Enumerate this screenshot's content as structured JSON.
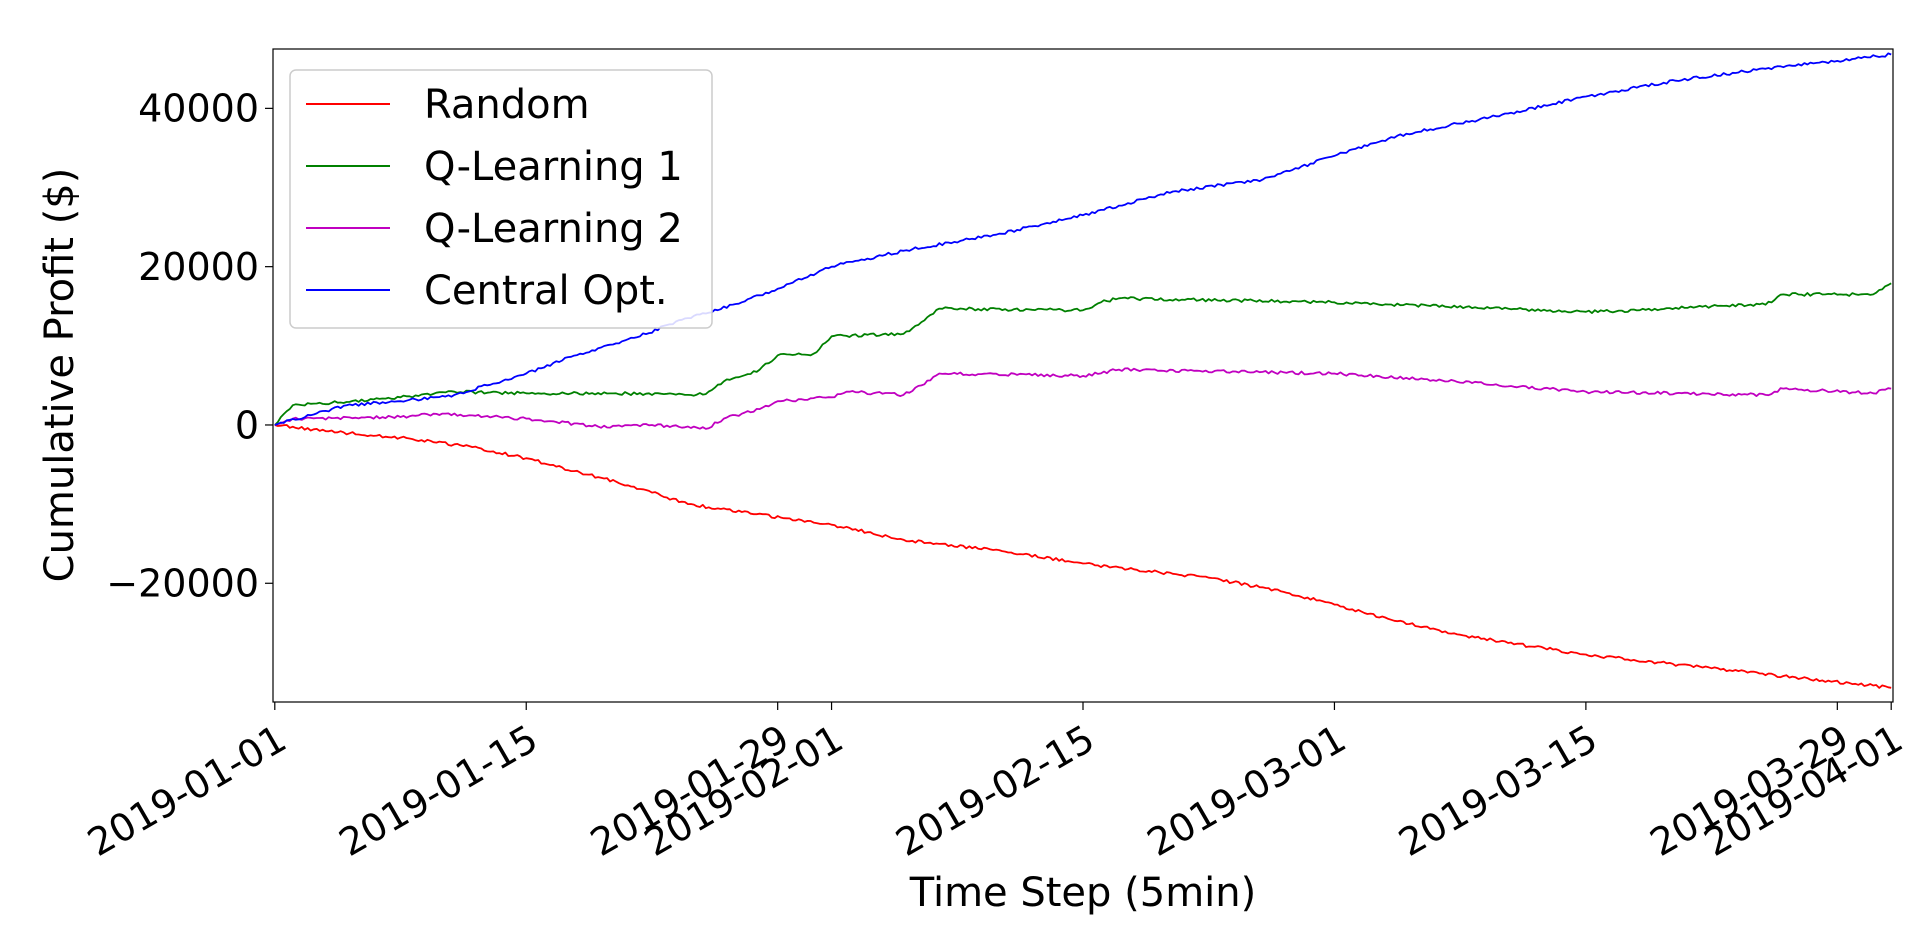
{
  "chart_data": {
    "type": "line",
    "title": "",
    "xlabel": "Time Step (5min)",
    "ylabel": "Cumulative Profit ($)",
    "x_type": "date",
    "xlim": [
      "2019-01-01",
      "2019-04-01"
    ],
    "ylim": [
      -35000,
      47500
    ],
    "x_ticks": [
      "2019-01-01",
      "2019-01-15",
      "2019-01-29",
      "2019-02-01",
      "2019-02-15",
      "2019-03-01",
      "2019-03-15",
      "2019-03-29",
      "2019-04-01"
    ],
    "y_ticks": [
      -20000,
      0,
      20000,
      40000
    ],
    "y_tick_labels": [
      "−20000",
      "0",
      "20000",
      "40000"
    ],
    "grid": false,
    "legend_position": "upper-left",
    "series": [
      {
        "name": "Random",
        "color": "#ff0000",
        "points": [
          [
            "2019-01-01",
            0
          ],
          [
            "2019-01-04",
            -800
          ],
          [
            "2019-01-08",
            -1600
          ],
          [
            "2019-01-12",
            -2800
          ],
          [
            "2019-01-15",
            -4200
          ],
          [
            "2019-01-18",
            -6000
          ],
          [
            "2019-01-21",
            -7800
          ],
          [
            "2019-01-24",
            -10000
          ],
          [
            "2019-01-27",
            -11000
          ],
          [
            "2019-02-01",
            -12600
          ],
          [
            "2019-02-05",
            -14500
          ],
          [
            "2019-02-10",
            -15800
          ],
          [
            "2019-02-15",
            -17500
          ],
          [
            "2019-02-18",
            -18300
          ],
          [
            "2019-02-22",
            -19300
          ],
          [
            "2019-02-26",
            -21000
          ],
          [
            "2019-03-01",
            -22700
          ],
          [
            "2019-03-04",
            -24500
          ],
          [
            "2019-03-08",
            -26500
          ],
          [
            "2019-03-12",
            -28000
          ],
          [
            "2019-03-15",
            -29000
          ],
          [
            "2019-03-19",
            -30000
          ],
          [
            "2019-03-23",
            -31000
          ],
          [
            "2019-03-27",
            -32000
          ],
          [
            "2019-03-30",
            -32700
          ],
          [
            "2019-04-01",
            -33200
          ]
        ]
      },
      {
        "name": "Q-Learning 1",
        "color": "#008000",
        "points": [
          [
            "2019-01-01",
            0
          ],
          [
            "2019-01-02",
            2500
          ],
          [
            "2019-01-05",
            2900
          ],
          [
            "2019-01-08",
            3500
          ],
          [
            "2019-01-11",
            4200
          ],
          [
            "2019-01-15",
            4000
          ],
          [
            "2019-01-20",
            4000
          ],
          [
            "2019-01-24",
            3800
          ],
          [
            "2019-01-25",
            3900
          ],
          [
            "2019-01-26",
            5500
          ],
          [
            "2019-01-28",
            7000
          ],
          [
            "2019-01-29",
            8800
          ],
          [
            "2019-01-31",
            9000
          ],
          [
            "2019-02-01",
            11200
          ],
          [
            "2019-02-05",
            11500
          ],
          [
            "2019-02-06",
            13000
          ],
          [
            "2019-02-07",
            14700
          ],
          [
            "2019-02-15",
            14500
          ],
          [
            "2019-02-16",
            15500
          ],
          [
            "2019-02-17",
            16000
          ],
          [
            "2019-03-01",
            15500
          ],
          [
            "2019-03-15",
            14300
          ],
          [
            "2019-03-18",
            14500
          ],
          [
            "2019-03-22",
            15000
          ],
          [
            "2019-03-25",
            15200
          ],
          [
            "2019-03-26",
            16500
          ],
          [
            "2019-03-31",
            16500
          ],
          [
            "2019-04-01",
            17900
          ]
        ]
      },
      {
        "name": "Q-Learning 2",
        "color": "#c000c0",
        "points": [
          [
            "2019-01-01",
            0
          ],
          [
            "2019-01-02",
            800
          ],
          [
            "2019-01-08",
            1000
          ],
          [
            "2019-01-10",
            1400
          ],
          [
            "2019-01-15",
            800
          ],
          [
            "2019-01-19",
            -200
          ],
          [
            "2019-01-22",
            0
          ],
          [
            "2019-01-25",
            -500
          ],
          [
            "2019-01-26",
            800
          ],
          [
            "2019-01-28",
            2000
          ],
          [
            "2019-01-29",
            3000
          ],
          [
            "2019-02-01",
            3500
          ],
          [
            "2019-02-02",
            4200
          ],
          [
            "2019-02-05",
            3800
          ],
          [
            "2019-02-06",
            5000
          ],
          [
            "2019-02-07",
            6500
          ],
          [
            "2019-02-15",
            6200
          ],
          [
            "2019-02-17",
            7000
          ],
          [
            "2019-03-01",
            6500
          ],
          [
            "2019-03-06",
            5800
          ],
          [
            "2019-03-15",
            4200
          ],
          [
            "2019-03-20",
            4000
          ],
          [
            "2019-03-25",
            3800
          ],
          [
            "2019-03-26",
            4600
          ],
          [
            "2019-03-31",
            4000
          ],
          [
            "2019-04-01",
            4600
          ]
        ]
      },
      {
        "name": "Central Opt.",
        "color": "#0000ff",
        "points": [
          [
            "2019-01-01",
            0
          ],
          [
            "2019-01-05",
            2500
          ],
          [
            "2019-01-08",
            3000
          ],
          [
            "2019-01-11",
            3800
          ],
          [
            "2019-01-15",
            6500
          ],
          [
            "2019-01-18",
            9000
          ],
          [
            "2019-01-21",
            11000
          ],
          [
            "2019-01-24",
            13500
          ],
          [
            "2019-01-27",
            15500
          ],
          [
            "2019-01-29",
            17200
          ],
          [
            "2019-02-01",
            20000
          ],
          [
            "2019-02-05",
            22000
          ],
          [
            "2019-02-10",
            24000
          ],
          [
            "2019-02-15",
            26500
          ],
          [
            "2019-02-20",
            29500
          ],
          [
            "2019-02-25",
            31000
          ],
          [
            "2019-03-01",
            34000
          ],
          [
            "2019-03-05",
            36800
          ],
          [
            "2019-03-10",
            39000
          ],
          [
            "2019-03-15",
            41500
          ],
          [
            "2019-03-20",
            43500
          ],
          [
            "2019-03-25",
            45000
          ],
          [
            "2019-03-29",
            46000
          ],
          [
            "2019-04-01",
            46800
          ]
        ]
      }
    ]
  }
}
